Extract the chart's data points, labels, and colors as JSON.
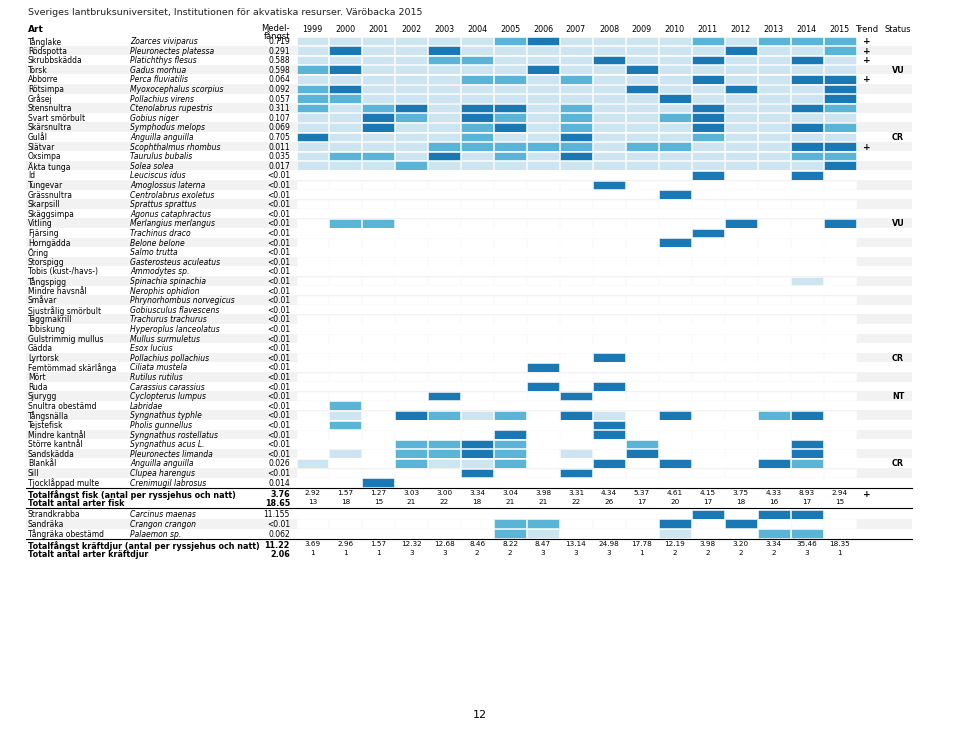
{
  "title": "Sveriges lantbruksuniversitet, Institutionen för akvatiska resurser. Väröbacka 2015",
  "page_number": "12",
  "years": [
    1999,
    2000,
    2001,
    2002,
    2003,
    2004,
    2005,
    2006,
    2007,
    2008,
    2009,
    2010,
    2011,
    2012,
    2013,
    2014,
    2015
  ],
  "species": [
    {
      "art": "Tånglake",
      "latin": "Zoarces viviparus",
      "medel": "0.719",
      "trend": "+",
      "status": "",
      "data": [
        1,
        1,
        1,
        1,
        1,
        1,
        2,
        3,
        1,
        1,
        1,
        1,
        2,
        1,
        2,
        2,
        2
      ]
    },
    {
      "art": "Rödspotta",
      "latin": "Pleuronectes platessa",
      "medel": "0.291",
      "trend": "+",
      "status": "",
      "data": [
        1,
        3,
        1,
        1,
        3,
        1,
        1,
        1,
        1,
        1,
        1,
        1,
        1,
        3,
        1,
        1,
        2
      ]
    },
    {
      "art": "Skrubbskädda",
      "latin": "Platichthys flesus",
      "medel": "0.588",
      "trend": "+",
      "status": "",
      "data": [
        1,
        1,
        1,
        1,
        2,
        2,
        1,
        1,
        1,
        3,
        1,
        1,
        3,
        1,
        1,
        3,
        1
      ]
    },
    {
      "art": "Torsk",
      "latin": "Gadus morhua",
      "medel": "0.598",
      "trend": "",
      "status": "VU",
      "data": [
        2,
        3,
        1,
        1,
        1,
        1,
        1,
        3,
        1,
        1,
        3,
        1,
        1,
        1,
        1,
        1,
        1
      ]
    },
    {
      "art": "Abborre",
      "latin": "Perca fluviatilis",
      "medel": "0.064",
      "trend": "+",
      "status": "",
      "data": [
        1,
        1,
        1,
        1,
        1,
        2,
        2,
        1,
        2,
        1,
        1,
        1,
        3,
        1,
        1,
        3,
        3
      ]
    },
    {
      "art": "Rötsimpa",
      "latin": "Myoxocephalus scorpius",
      "medel": "0.092",
      "trend": "",
      "status": "",
      "data": [
        2,
        3,
        1,
        1,
        1,
        1,
        1,
        1,
        1,
        1,
        3,
        1,
        1,
        3,
        1,
        1,
        3
      ]
    },
    {
      "art": "Gråsej",
      "latin": "Pollachius virens",
      "medel": "0.057",
      "trend": "",
      "status": "",
      "data": [
        2,
        2,
        1,
        1,
        1,
        1,
        1,
        1,
        1,
        1,
        1,
        3,
        1,
        1,
        1,
        1,
        3
      ]
    },
    {
      "art": "Stensnultra",
      "latin": "Ctenolabrus rupestris",
      "medel": "0.311",
      "trend": "",
      "status": "",
      "data": [
        2,
        1,
        2,
        3,
        1,
        3,
        3,
        1,
        2,
        1,
        1,
        1,
        3,
        1,
        1,
        3,
        2
      ]
    },
    {
      "art": "Svart smörbult",
      "latin": "Gobius niger",
      "medel": "0.107",
      "trend": "",
      "status": "",
      "data": [
        1,
        1,
        3,
        2,
        1,
        3,
        2,
        1,
        2,
        1,
        1,
        2,
        3,
        1,
        1,
        1,
        1
      ]
    },
    {
      "art": "Skärsnultra",
      "latin": "Symphodus melops",
      "medel": "0.069",
      "trend": "",
      "status": "",
      "data": [
        1,
        1,
        3,
        1,
        1,
        2,
        3,
        1,
        2,
        1,
        1,
        1,
        3,
        1,
        1,
        3,
        2
      ]
    },
    {
      "art": "Gulål",
      "latin": "Anguilla anguilla",
      "medel": "0.705",
      "trend": "",
      "status": "CR",
      "data": [
        3,
        1,
        1,
        1,
        1,
        2,
        1,
        1,
        3,
        1,
        1,
        1,
        2,
        1,
        1,
        1,
        1
      ]
    },
    {
      "art": "Slätvar",
      "latin": "Scophthalmus rhombus",
      "medel": "0.011",
      "trend": "+",
      "status": "",
      "data": [
        1,
        1,
        1,
        1,
        2,
        2,
        2,
        2,
        2,
        1,
        2,
        2,
        1,
        1,
        1,
        3,
        3
      ]
    },
    {
      "art": "Oxsimpa",
      "latin": "Taurulus bubalis",
      "medel": "0.035",
      "trend": "",
      "status": "",
      "data": [
        1,
        2,
        2,
        1,
        3,
        1,
        2,
        1,
        3,
        1,
        1,
        1,
        1,
        1,
        1,
        2,
        2
      ]
    },
    {
      "art": "Äkta tunga",
      "latin": "Solea solea",
      "medel": "0.017",
      "trend": "",
      "status": "",
      "data": [
        1,
        1,
        1,
        2,
        1,
        1,
        1,
        1,
        1,
        1,
        1,
        1,
        1,
        1,
        1,
        1,
        3
      ]
    },
    {
      "art": "Id",
      "latin": "Leuciscus idus",
      "medel": "<0.01",
      "trend": "",
      "status": "",
      "data": [
        0,
        0,
        0,
        0,
        0,
        0,
        0,
        0,
        0,
        0,
        0,
        0,
        3,
        0,
        0,
        3,
        0
      ]
    },
    {
      "art": "Tungevar",
      "latin": "Amoglossus laterna",
      "medel": "<0.01",
      "trend": "",
      "status": "",
      "data": [
        0,
        0,
        0,
        0,
        0,
        0,
        0,
        0,
        0,
        3,
        0,
        0,
        0,
        0,
        0,
        0,
        0
      ]
    },
    {
      "art": "Grässnultra",
      "latin": "Centrolabrus exoletus",
      "medel": "<0.01",
      "trend": "",
      "status": "",
      "data": [
        0,
        0,
        0,
        0,
        0,
        0,
        0,
        0,
        0,
        0,
        0,
        3,
        0,
        0,
        0,
        0,
        0
      ]
    },
    {
      "art": "Skarpsill",
      "latin": "Sprattus sprattus",
      "medel": "<0.01",
      "trend": "",
      "status": "",
      "data": [
        0,
        0,
        0,
        0,
        0,
        0,
        0,
        0,
        0,
        0,
        0,
        0,
        0,
        0,
        0,
        0,
        0
      ]
    },
    {
      "art": "Skäggsimpa",
      "latin": "Agonus cataphractus",
      "medel": "<0.01",
      "trend": "",
      "status": "",
      "data": [
        0,
        0,
        0,
        0,
        0,
        0,
        0,
        0,
        0,
        0,
        0,
        0,
        0,
        0,
        0,
        0,
        0
      ]
    },
    {
      "art": "Vitling",
      "latin": "Merlangius merlangus",
      "medel": "<0.01",
      "trend": "",
      "status": "VU",
      "data": [
        0,
        2,
        2,
        0,
        0,
        0,
        0,
        0,
        0,
        0,
        0,
        0,
        0,
        3,
        0,
        0,
        3
      ]
    },
    {
      "art": "Fjärsing",
      "latin": "Trachinus draco",
      "medel": "<0.01",
      "trend": "",
      "status": "",
      "data": [
        0,
        0,
        0,
        0,
        0,
        0,
        0,
        0,
        0,
        0,
        0,
        0,
        3,
        0,
        0,
        0,
        0
      ]
    },
    {
      "art": "Horngädda",
      "latin": "Belone belone",
      "medel": "<0.01",
      "trend": "",
      "status": "",
      "data": [
        0,
        0,
        0,
        0,
        0,
        0,
        0,
        0,
        0,
        0,
        0,
        3,
        0,
        0,
        0,
        0,
        0
      ]
    },
    {
      "art": "Öring",
      "latin": "Salmo trutta",
      "medel": "<0.01",
      "trend": "",
      "status": "",
      "data": [
        0,
        0,
        0,
        0,
        0,
        0,
        0,
        0,
        0,
        0,
        0,
        0,
        0,
        0,
        0,
        0,
        0
      ]
    },
    {
      "art": "Storspigg",
      "latin": "Gasterosteus aculeatus",
      "medel": "<0.01",
      "trend": "",
      "status": "",
      "data": [
        0,
        0,
        0,
        0,
        0,
        0,
        0,
        0,
        0,
        0,
        0,
        0,
        0,
        0,
        0,
        0,
        0
      ]
    },
    {
      "art": "Tobis (kust-/havs-)",
      "latin": "Ammodytes sp.",
      "medel": "<0.01",
      "trend": "",
      "status": "",
      "data": [
        0,
        0,
        0,
        0,
        0,
        0,
        0,
        0,
        0,
        0,
        0,
        0,
        0,
        0,
        0,
        0,
        0
      ]
    },
    {
      "art": "Tångspigg",
      "latin": "Spinachia spinachia",
      "medel": "<0.01",
      "trend": "",
      "status": "",
      "data": [
        0,
        0,
        0,
        0,
        0,
        0,
        0,
        0,
        0,
        0,
        0,
        0,
        0,
        0,
        0,
        1,
        0
      ]
    },
    {
      "art": "Mindre havsnål",
      "latin": "Nerophis ophidion",
      "medel": "<0.01",
      "trend": "",
      "status": "",
      "data": [
        0,
        0,
        0,
        0,
        0,
        0,
        0,
        0,
        0,
        0,
        0,
        0,
        0,
        0,
        0,
        0,
        0
      ]
    },
    {
      "art": "Småvar",
      "latin": "Phrynorhombus norvegicus",
      "medel": "<0.01",
      "trend": "",
      "status": "",
      "data": [
        0,
        0,
        0,
        0,
        0,
        0,
        0,
        0,
        0,
        0,
        0,
        0,
        0,
        0,
        0,
        0,
        0
      ]
    },
    {
      "art": "Sjustrålig smörbult",
      "latin": "Gobiusculus flavescens",
      "medel": "<0.01",
      "trend": "",
      "status": "",
      "data": [
        0,
        0,
        0,
        0,
        0,
        0,
        0,
        0,
        0,
        0,
        0,
        0,
        0,
        0,
        0,
        0,
        0
      ]
    },
    {
      "art": "Taggmakrill",
      "latin": "Trachurus trachurus",
      "medel": "<0.01",
      "trend": "",
      "status": "",
      "data": [
        0,
        0,
        0,
        0,
        0,
        0,
        0,
        0,
        0,
        0,
        0,
        0,
        0,
        0,
        0,
        0,
        0
      ]
    },
    {
      "art": "Tobiskung",
      "latin": "Hyperoplus lanceolatus",
      "medel": "<0.01",
      "trend": "",
      "status": "",
      "data": [
        0,
        0,
        0,
        0,
        0,
        0,
        0,
        0,
        0,
        0,
        0,
        0,
        0,
        0,
        0,
        0,
        0
      ]
    },
    {
      "art": "Gulstrimmig mullus",
      "latin": "Mullus surmuletus",
      "medel": "<0.01",
      "trend": "",
      "status": "",
      "data": [
        0,
        0,
        0,
        0,
        0,
        0,
        0,
        0,
        0,
        0,
        0,
        0,
        0,
        0,
        0,
        0,
        0
      ]
    },
    {
      "art": "Gädda",
      "latin": "Esox lucius",
      "medel": "<0.01",
      "trend": "",
      "status": "",
      "data": [
        0,
        0,
        0,
        0,
        0,
        0,
        0,
        0,
        0,
        0,
        0,
        0,
        0,
        0,
        0,
        0,
        0
      ]
    },
    {
      "art": "Lyrtorsk",
      "latin": "Pollachius pollachius",
      "medel": "<0.01",
      "trend": "",
      "status": "CR",
      "data": [
        0,
        0,
        0,
        0,
        0,
        0,
        0,
        0,
        0,
        3,
        0,
        0,
        0,
        0,
        0,
        0,
        0
      ]
    },
    {
      "art": "Femtömmad skärlånga",
      "latin": "Ciliata mustela",
      "medel": "<0.01",
      "trend": "",
      "status": "",
      "data": [
        0,
        0,
        0,
        0,
        0,
        0,
        0,
        3,
        0,
        0,
        0,
        0,
        0,
        0,
        0,
        0,
        0
      ]
    },
    {
      "art": "Mört",
      "latin": "Rutilus rutilus",
      "medel": "<0.01",
      "trend": "",
      "status": "",
      "data": [
        0,
        0,
        0,
        0,
        0,
        0,
        0,
        0,
        0,
        0,
        0,
        0,
        0,
        0,
        0,
        0,
        0
      ]
    },
    {
      "art": "Ruda",
      "latin": "Carassius carassius",
      "medel": "<0.01",
      "trend": "",
      "status": "",
      "data": [
        0,
        0,
        0,
        0,
        0,
        0,
        0,
        3,
        0,
        3,
        0,
        0,
        0,
        0,
        0,
        0,
        0
      ]
    },
    {
      "art": "Sjurygg",
      "latin": "Cyclopterus lumpus",
      "medel": "<0.01",
      "trend": "",
      "status": "NT",
      "data": [
        0,
        0,
        0,
        0,
        3,
        0,
        0,
        0,
        3,
        0,
        0,
        0,
        0,
        0,
        0,
        0,
        0
      ]
    },
    {
      "art": "Snultra obestämd",
      "latin": "Labridae",
      "medel": "<0.01",
      "trend": "",
      "status": "",
      "data": [
        0,
        2,
        0,
        0,
        0,
        0,
        0,
        0,
        0,
        0,
        0,
        0,
        0,
        0,
        0,
        0,
        0
      ]
    },
    {
      "art": "Tångsnälla",
      "latin": "Syngnathus typhle",
      "medel": "<0.01",
      "trend": "",
      "status": "",
      "data": [
        0,
        1,
        0,
        3,
        2,
        1,
        2,
        0,
        3,
        1,
        0,
        3,
        0,
        0,
        2,
        3,
        0
      ]
    },
    {
      "art": "Tejstefisk",
      "latin": "Pholis gunnellus",
      "medel": "<0.01",
      "trend": "",
      "status": "",
      "data": [
        0,
        2,
        0,
        0,
        0,
        0,
        0,
        0,
        0,
        3,
        0,
        0,
        0,
        0,
        0,
        0,
        0
      ]
    },
    {
      "art": "Mindre kantnål",
      "latin": "Syngnathus rostellatus",
      "medel": "<0.01",
      "trend": "",
      "status": "",
      "data": [
        0,
        0,
        0,
        0,
        0,
        0,
        3,
        0,
        0,
        3,
        0,
        0,
        0,
        0,
        0,
        0,
        0
      ]
    },
    {
      "art": "Större kantnål",
      "latin": "Syngnathus acus L.",
      "medel": "<0.01",
      "trend": "",
      "status": "",
      "data": [
        0,
        0,
        0,
        2,
        2,
        3,
        2,
        0,
        0,
        0,
        2,
        0,
        0,
        0,
        0,
        3,
        0
      ]
    },
    {
      "art": "Sandskädda",
      "latin": "Pleuronectes limanda",
      "medel": "<0.01",
      "trend": "",
      "status": "",
      "data": [
        0,
        1,
        0,
        2,
        2,
        3,
        2,
        0,
        1,
        0,
        3,
        0,
        0,
        0,
        0,
        3,
        0
      ]
    },
    {
      "art": "Blankål",
      "latin": "Anguilla anguilla",
      "medel": "0.026",
      "trend": "",
      "status": "CR",
      "data": [
        1,
        0,
        0,
        2,
        1,
        1,
        2,
        0,
        0,
        3,
        0,
        3,
        0,
        0,
        3,
        2,
        0
      ]
    },
    {
      "art": "Sill",
      "latin": "Clupea harengus",
      "medel": "<0.01",
      "trend": "",
      "status": "",
      "data": [
        0,
        0,
        0,
        0,
        0,
        3,
        0,
        0,
        3,
        0,
        0,
        0,
        0,
        0,
        0,
        0,
        0
      ]
    },
    {
      "art": "Tjocklåppad multe",
      "latin": "Crenimugil labrosus",
      "medel": "0.014",
      "trend": "",
      "status": "",
      "data": [
        0,
        0,
        3,
        0,
        0,
        0,
        0,
        0,
        0,
        0,
        0,
        0,
        0,
        0,
        0,
        0,
        0
      ]
    }
  ],
  "totals_fish": {
    "label1": "Totalfångst fisk (antal per ryssjehus och natt)",
    "medel1": "3.76",
    "values1": [
      "2.92",
      "1.57",
      "1.27",
      "3.03",
      "3.00",
      "3.34",
      "3.04",
      "3.98",
      "3.31",
      "4.34",
      "5.37",
      "4.61",
      "4.15",
      "3.75",
      "4.33",
      "8.93",
      "2.94"
    ],
    "trend1": "+",
    "label2": "Totalt antal arter fisk",
    "medel2": "18.65",
    "values2": [
      "13",
      "18",
      "15",
      "21",
      "22",
      "18",
      "21",
      "21",
      "22",
      "26",
      "17",
      "20",
      "17",
      "18",
      "16",
      "17",
      "15"
    ]
  },
  "crustaceans": [
    {
      "art": "Strandkrabba",
      "latin": "Carcinus maenas",
      "medel": "11.155",
      "trend": "",
      "status": "",
      "data": [
        0,
        0,
        0,
        0,
        0,
        0,
        0,
        0,
        0,
        0,
        0,
        0,
        3,
        0,
        3,
        3,
        0
      ]
    },
    {
      "art": "Sandräka",
      "latin": "Crangon crangon",
      "medel": "<0.01",
      "trend": "",
      "status": "",
      "data": [
        0,
        0,
        0,
        0,
        0,
        0,
        2,
        2,
        0,
        0,
        0,
        3,
        0,
        3,
        0,
        0,
        0
      ]
    },
    {
      "art": "Tångräka obestämd",
      "latin": "Palaemon sp.",
      "medel": "0.062",
      "trend": "",
      "status": "",
      "data": [
        0,
        0,
        0,
        0,
        0,
        0,
        2,
        1,
        0,
        0,
        0,
        1,
        0,
        0,
        2,
        2,
        0
      ]
    }
  ],
  "totals_crust": {
    "label1": "Totalfångst kräftdjur (antal per ryssjehus och natt)",
    "medel1": "11.22",
    "values1": [
      "3.69",
      "2.96",
      "1.57",
      "12.32",
      "12.68",
      "8.46",
      "8.22",
      "8.47",
      "13.14",
      "24.98",
      "17.78",
      "12.19",
      "3.98",
      "3.20",
      "3.34",
      "35.46",
      "18.35"
    ],
    "label2": "Totalt antal arter kräftdjur",
    "medel2": "2.06",
    "values2": [
      "1",
      "1",
      "1",
      "3",
      "3",
      "2",
      "2",
      "3",
      "3",
      "3",
      "1",
      "2",
      "2",
      "2",
      "2",
      "3",
      "1"
    ]
  },
  "color_0": "#ffffff",
  "color_1": "#cce5f0",
  "color_2": "#5ab4d6",
  "color_3": "#1a78b4"
}
